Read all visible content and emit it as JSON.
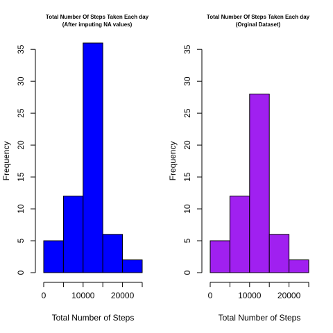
{
  "chart_data": [
    {
      "type": "bar",
      "title": "Total Number Of Steps Taken Each day",
      "subtitle": "(After imputing NA values)",
      "xlabel": "Total Number of Steps",
      "ylabel": "Frequency",
      "bin_edges": [
        0,
        5000,
        10000,
        15000,
        20000,
        25000
      ],
      "values": [
        5,
        12,
        36,
        6,
        2
      ],
      "x_ticks": [
        0,
        10000,
        20000
      ],
      "x_tick_labels": [
        "0",
        "10000",
        "20000"
      ],
      "x_minor_ticks": [
        0,
        5000,
        10000,
        15000,
        20000,
        25000
      ],
      "y_ticks": [
        0,
        5,
        10,
        15,
        20,
        25,
        30,
        35
      ],
      "y_tick_labels": [
        "0",
        "5",
        "10",
        "15",
        "20",
        "25",
        "30",
        "35"
      ],
      "xlim": [
        0,
        25000
      ],
      "ylim": [
        0,
        36
      ],
      "bar_color": "#0000ff",
      "grid": false
    },
    {
      "type": "bar",
      "title": "Total Number Of Steps Taken Each day",
      "subtitle": "(Orginal Dataset)",
      "xlabel": "Total Number of Steps",
      "ylabel": "Frequency",
      "bin_edges": [
        0,
        5000,
        10000,
        15000,
        20000,
        25000
      ],
      "values": [
        5,
        12,
        28,
        6,
        2
      ],
      "x_ticks": [
        0,
        10000,
        20000
      ],
      "x_tick_labels": [
        "0",
        "10000",
        "20000"
      ],
      "x_minor_ticks": [
        0,
        5000,
        10000,
        15000,
        20000,
        25000
      ],
      "y_ticks": [
        0,
        5,
        10,
        15,
        20,
        25,
        30,
        35
      ],
      "y_tick_labels": [
        "0",
        "5",
        "10",
        "15",
        "20",
        "25",
        "30",
        "35"
      ],
      "xlim": [
        0,
        25000
      ],
      "ylim": [
        0,
        36
      ],
      "bar_color": "#a020f0",
      "grid": false
    }
  ]
}
